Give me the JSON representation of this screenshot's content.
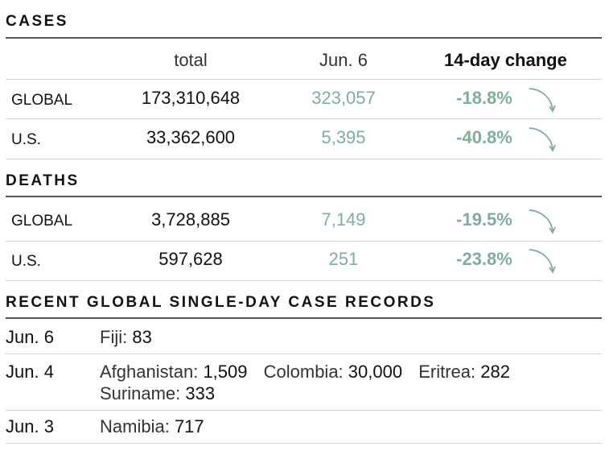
{
  "cases": {
    "heading": "CASES",
    "columns": {
      "total": "total",
      "today": "Jun. 6",
      "change": "14-day change"
    },
    "rows": [
      {
        "region": "GLOBAL",
        "total": "173,310,648",
        "today": "323,057",
        "change": "-18.8%"
      },
      {
        "region": "U.S.",
        "total": "33,362,600",
        "today": "5,395",
        "change": "-40.8%"
      }
    ]
  },
  "deaths": {
    "heading": "DEATHS",
    "rows": [
      {
        "region": "GLOBAL",
        "total": "3,728,885",
        "today": "7,149",
        "change": "-19.5%"
      },
      {
        "region": "U.S.",
        "total": "597,628",
        "today": "251",
        "change": "-23.8%"
      }
    ]
  },
  "records": {
    "heading": "RECENT GLOBAL SINGLE-DAY CASE RECORDS",
    "rows": [
      {
        "date": "Jun. 6",
        "items": [
          {
            "name": "Fiji:",
            "value": "83"
          }
        ]
      },
      {
        "date": "Jun. 4",
        "items": [
          {
            "name": "Afghanistan:",
            "value": "1,509"
          },
          {
            "name": "Colombia:",
            "value": "30,000"
          },
          {
            "name": "Eritrea:",
            "value": "282"
          },
          {
            "name": "Suriname:",
            "value": "333"
          }
        ]
      },
      {
        "date": "Jun. 3",
        "items": [
          {
            "name": "Namibia:",
            "value": "717"
          }
        ]
      }
    ]
  },
  "colors": {
    "accent": "#7fae98",
    "rule": "#555555",
    "divider": "#d6d6d6"
  },
  "icons": {
    "trend": "down-curve-arrow-icon"
  }
}
